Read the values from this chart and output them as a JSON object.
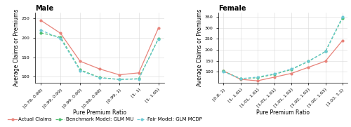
{
  "male": {
    "title": "Male",
    "xlabel": "Pure Premium Ratio",
    "ylabel": "Average Claims or Premiums",
    "x_labels": [
      "[0.79, 0.99)",
      "[0.99, 0.99)",
      "[0.99, 0.99)",
      "[0.99, 0.99)",
      "[0.99, 1)",
      "[1, 1)",
      "[1, 1.05)"
    ],
    "actual": [
      245,
      212,
      140,
      120,
      105,
      110,
      225
    ],
    "benchmark": [
      213,
      202,
      118,
      98,
      93,
      95,
      198
    ],
    "fair": [
      220,
      198,
      116,
      97,
      93,
      94,
      197
    ],
    "ylim": [
      85,
      265
    ],
    "yticks": [
      100,
      150,
      200,
      250
    ]
  },
  "female": {
    "title": "Female",
    "xlabel": "Pure Premium Ratio",
    "ylabel": "Average Claims or Premiums",
    "x_labels": [
      "[0.8, 1)",
      "[1, 1.01)",
      "[1.01, 1.01)",
      "[1.01, 1.01)",
      "[1.01, 1.02)",
      "[1.02, 1.02)",
      "[1.02, 1.03)",
      "[1.03, 1.1)"
    ],
    "actual": [
      103,
      65,
      58,
      75,
      92,
      120,
      148,
      242
    ],
    "benchmark": [
      102,
      68,
      72,
      88,
      110,
      147,
      192,
      345
    ],
    "fair": [
      100,
      68,
      75,
      90,
      112,
      148,
      192,
      350
    ],
    "ylim": [
      50,
      370
    ],
    "yticks": [
      100,
      150,
      200,
      250,
      300,
      350
    ]
  },
  "actual_color": "#e8837a",
  "benchmark_color": "#4dbe6e",
  "fair_color": "#6bc9d4",
  "legend_labels": [
    "Actual Claims",
    "Benchmark Model: GLM MU",
    "Fair Model: GLM MCDP"
  ],
  "title_fontsize": 7,
  "axis_label_fontsize": 5.5,
  "tick_fontsize": 4.5,
  "legend_fontsize": 5.0
}
